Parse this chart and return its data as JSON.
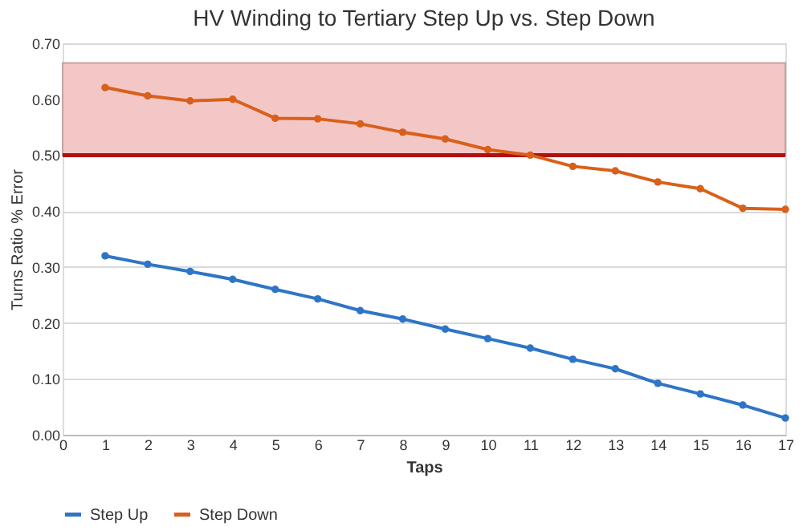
{
  "chart_data": {
    "type": "line",
    "title": "HV Winding to Tertiary Step Up vs. Step Down",
    "xlabel": "Taps",
    "ylabel": "Turns Ratio % Error",
    "x": [
      1,
      2,
      3,
      4,
      5,
      6,
      7,
      8,
      9,
      10,
      11,
      12,
      13,
      14,
      15,
      16,
      17
    ],
    "series": [
      {
        "name": "Step Up",
        "color": "#2e75c6",
        "values": [
          0.32,
          0.305,
          0.292,
          0.278,
          0.26,
          0.243,
          0.222,
          0.207,
          0.189,
          0.172,
          0.155,
          0.135,
          0.118,
          0.092,
          0.073,
          0.053,
          0.03
        ]
      },
      {
        "name": "Step Down",
        "color": "#d9601a",
        "values": [
          0.621,
          0.606,
          0.597,
          0.6,
          0.566,
          0.565,
          0.556,
          0.541,
          0.529,
          0.51,
          0.5,
          0.48,
          0.472,
          0.452,
          0.44,
          0.405,
          0.403
        ]
      }
    ],
    "xlim": [
      0,
      17
    ],
    "xticks": [
      0,
      1,
      2,
      3,
      4,
      5,
      6,
      7,
      8,
      9,
      10,
      11,
      12,
      13,
      14,
      15,
      16,
      17
    ],
    "ylim": [
      0,
      0.7
    ],
    "yticks": [
      {
        "value": 0,
        "label": "0.00"
      },
      {
        "value": 0.1,
        "label": "0.10"
      },
      {
        "value": 0.2,
        "label": "0.20"
      },
      {
        "value": 0.3,
        "label": "0.30"
      },
      {
        "value": 0.4,
        "label": "0.40"
      },
      {
        "value": 0.5,
        "label": "0.50"
      },
      {
        "value": 0.6,
        "label": "0.60"
      },
      {
        "value": 0.7,
        "label": "0.70"
      }
    ],
    "ref_lines": [
      {
        "axis": "y",
        "value": 0.5,
        "color": "#b01010",
        "line_style": "solid"
      }
    ],
    "bands": [
      {
        "axis": "y",
        "from": 0.5,
        "to": 0.665,
        "color": "#f4c7c7"
      }
    ],
    "grid": "y",
    "legend": "bottom",
    "marker": "circle",
    "line_style": "solid"
  }
}
